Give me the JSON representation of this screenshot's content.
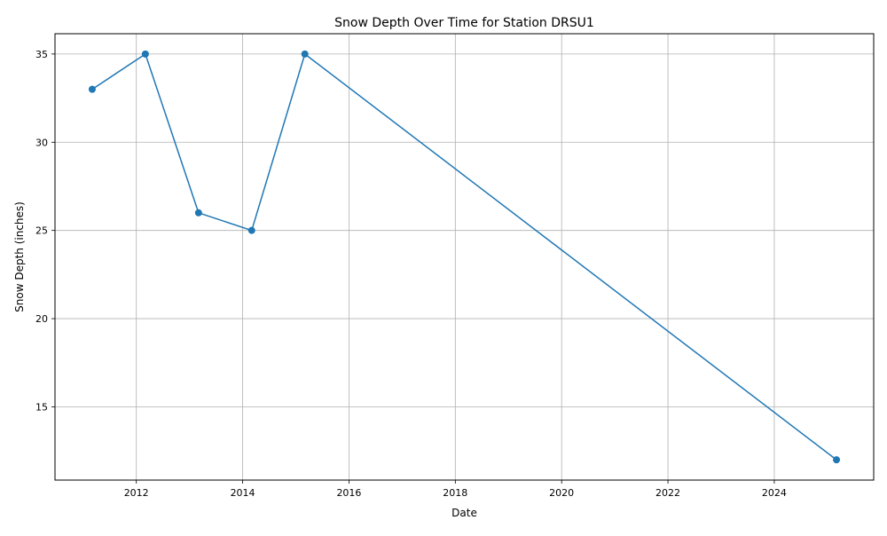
{
  "chart_data": {
    "type": "line",
    "title": "Snow Depth Over Time for Station DRSU1",
    "xlabel": "Date",
    "ylabel": "Snow Depth (inches)",
    "x": [
      2011.17,
      2012.17,
      2013.17,
      2014.17,
      2015.17,
      2025.17
    ],
    "series": [
      {
        "values": [
          33,
          35,
          26,
          25,
          35,
          12
        ]
      }
    ],
    "xlim": [
      2010.47,
      2025.87
    ],
    "ylim": [
      10.85,
      36.15
    ],
    "x_ticks": [
      2012,
      2014,
      2016,
      2018,
      2020,
      2022,
      2024
    ],
    "x_tick_labels": [
      "2012",
      "2014",
      "2016",
      "2018",
      "2020",
      "2022",
      "2024"
    ],
    "y_ticks": [
      15,
      20,
      25,
      30,
      35
    ],
    "y_tick_labels": [
      "15",
      "20",
      "25",
      "30",
      "35"
    ],
    "grid": true,
    "marker": "circle",
    "line_color": "#1f77b4",
    "grid_color": "#b0b0b0"
  }
}
